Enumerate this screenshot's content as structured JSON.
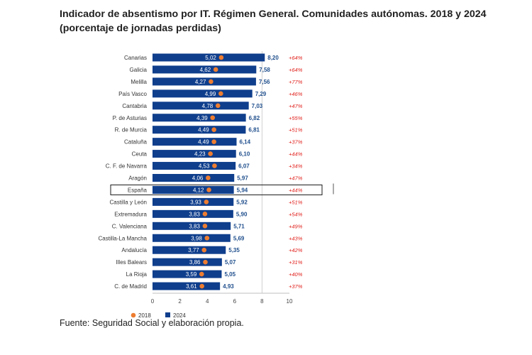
{
  "header": {
    "title_line1": "Indicador de absentismo por IT. Régimen General. Comunidades autónomas. 2018 y 2024",
    "title_line2": "(porcentaje de jornadas perdidas)"
  },
  "footer": {
    "source": "Fuente: Seguridad Social y elaboración propia."
  },
  "colors": {
    "bar_2024": "#0f3e8c",
    "dot_2018": "#ed7d31",
    "value_2024": "#1f4e8c",
    "pct_change": "#e0201b"
  },
  "chart_data": {
    "type": "bar",
    "orientation": "horizontal",
    "categories": [
      "Canarias",
      "Galicia",
      "Melilla",
      "País Vasco",
      "Cantabria",
      "P. de Asturias",
      "R. de Murcia",
      "Cataluña",
      "Ceuta",
      "C. F. de Navarra",
      "Aragón",
      "España",
      "Castilla y León",
      "Extremadura",
      "C. Valenciana",
      "Castilla-La Mancha",
      "Andalucía",
      "Illes Balears",
      "La Rioja",
      "C. de Madrid"
    ],
    "series": [
      {
        "name": "2018",
        "marker": "dot",
        "values": [
          5.02,
          4.62,
          4.27,
          4.99,
          4.78,
          4.39,
          4.49,
          4.49,
          4.23,
          4.53,
          4.06,
          4.12,
          3.93,
          3.83,
          3.83,
          3.98,
          3.77,
          3.86,
          3.59,
          3.61
        ],
        "labels": [
          "5,02",
          "4,62",
          "4,27",
          "4,99",
          "4,78",
          "4,39",
          "4,49",
          "4,49",
          "4,23",
          "4,53",
          "4,06",
          "4,12",
          "3,93",
          "3,83",
          "3,83",
          "3,98",
          "3,77",
          "3,86",
          "3,59",
          "3,61"
        ]
      },
      {
        "name": "2024",
        "marker": "bar",
        "values": [
          8.2,
          7.58,
          7.56,
          7.29,
          7.03,
          6.82,
          6.81,
          6.14,
          6.1,
          6.07,
          5.97,
          5.94,
          5.92,
          5.9,
          5.71,
          5.69,
          5.35,
          5.07,
          5.05,
          4.93
        ],
        "labels": [
          "8,20",
          "7,58",
          "7,56",
          "7,29",
          "7,03",
          "6,82",
          "6,81",
          "6,14",
          "6,10",
          "6,07",
          "5,97",
          "5,94",
          "5,92",
          "5,90",
          "5,71",
          "5,69",
          "5,35",
          "5,07",
          "5,05",
          "4,93"
        ]
      }
    ],
    "change_labels": [
      "+64%",
      "+64%",
      "+77%",
      "+46%",
      "+47%",
      "+55%",
      "+51%",
      "+37%",
      "+44%",
      "+34%",
      "+47%",
      "+44%",
      "+51%",
      "+54%",
      "+49%",
      "+43%",
      "+42%",
      "+31%",
      "+40%",
      "+37%"
    ],
    "highlighted_category": "España",
    "xlim": [
      0,
      10
    ],
    "xticks": [
      "0",
      "2",
      "4",
      "6",
      "8",
      "10"
    ],
    "xgrid_at": [
      8
    ],
    "legend": {
      "position": "bottom-left",
      "entries": [
        "2018",
        "2024"
      ]
    }
  }
}
